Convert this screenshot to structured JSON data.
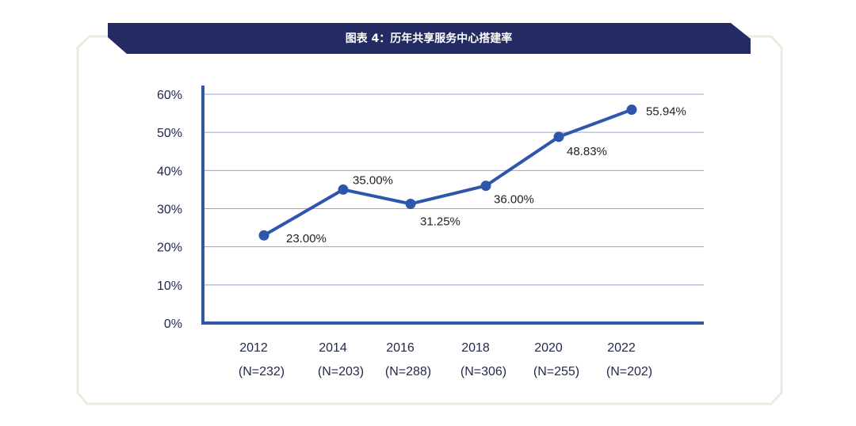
{
  "title": "图表 4：历年共享服务中心搭建率",
  "colors": {
    "banner": "#232b62",
    "line": "#2e56aa",
    "axis": "#2e56aa",
    "grid": "#8ea6d8",
    "frame": "#e9ecdf",
    "text": "#222a4a"
  },
  "chart_data": {
    "type": "line",
    "ylim": [
      0,
      60
    ],
    "yticks": [
      "0%",
      "10%",
      "20%",
      "30%",
      "40%",
      "50%",
      "60%"
    ],
    "grid": true,
    "categories": [
      "2012",
      "2014",
      "2016",
      "2018",
      "2020",
      "2022"
    ],
    "category_sublabels": [
      "(N=232)",
      "(N=203)",
      "(N=288)",
      "(N=306)",
      "(N=255)",
      "(N=202)"
    ],
    "values": [
      23.0,
      35.0,
      31.25,
      36.0,
      48.83,
      55.94
    ],
    "data_labels": [
      "23.00%",
      "35.00%",
      "31.25%",
      "36.00%",
      "48.83%",
      "55.94%"
    ]
  }
}
